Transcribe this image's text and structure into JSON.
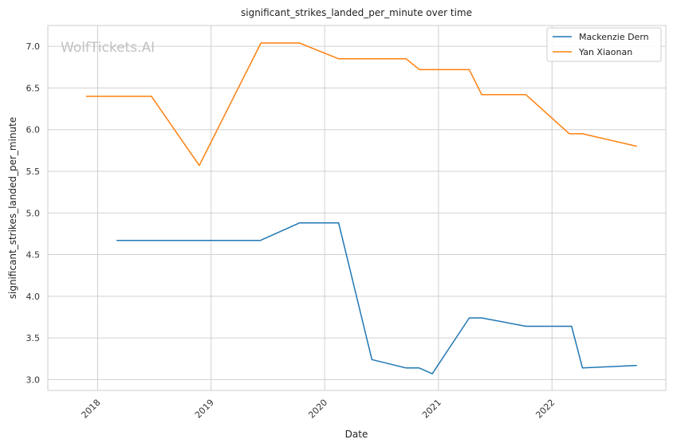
{
  "chart_data": {
    "type": "line",
    "title": "significant_strikes_landed_per_minute over time",
    "xlabel": "Date",
    "ylabel": "significant_strikes_landed_per_minute",
    "watermark": "WolfTickets.AI",
    "x_ticks": [
      "2018",
      "2019",
      "2020",
      "2021",
      "2022"
    ],
    "y_ticks": [
      "3.0",
      "3.5",
      "4.0",
      "4.5",
      "5.0",
      "5.5",
      "6.0",
      "6.5",
      "7.0"
    ],
    "xlim": [
      "2017-07-25",
      "2023-01-02"
    ],
    "ylim": [
      2.87,
      7.25
    ],
    "grid": true,
    "legend_position": "top-right",
    "series": [
      {
        "name": "Mackenzie Dern",
        "color": "#1f77b4",
        "points": [
          {
            "x": "2018-03-03",
            "y": 4.67
          },
          {
            "x": "2019-06-08",
            "y": 4.67
          },
          {
            "x": "2019-10-12",
            "y": 4.88
          },
          {
            "x": "2020-02-15",
            "y": 4.88
          },
          {
            "x": "2020-06-01",
            "y": 3.24
          },
          {
            "x": "2020-09-19",
            "y": 3.14
          },
          {
            "x": "2020-10-31",
            "y": 3.14
          },
          {
            "x": "2020-12-12",
            "y": 3.07
          },
          {
            "x": "2021-04-10",
            "y": 3.74
          },
          {
            "x": "2021-05-20",
            "y": 3.74
          },
          {
            "x": "2021-10-09",
            "y": 3.64
          },
          {
            "x": "2022-03-05",
            "y": 3.64
          },
          {
            "x": "2022-04-09",
            "y": 3.14
          },
          {
            "x": "2022-10-01",
            "y": 3.17
          }
        ]
      },
      {
        "name": "Yan Xiaonan",
        "color": "#ff7f0e",
        "points": [
          {
            "x": "2017-11-25",
            "y": 6.4
          },
          {
            "x": "2018-06-23",
            "y": 6.4
          },
          {
            "x": "2018-11-24",
            "y": 5.57
          },
          {
            "x": "2019-06-10",
            "y": 7.04
          },
          {
            "x": "2019-10-12",
            "y": 7.04
          },
          {
            "x": "2020-02-15",
            "y": 6.85
          },
          {
            "x": "2020-09-19",
            "y": 6.85
          },
          {
            "x": "2020-11-01",
            "y": 6.72
          },
          {
            "x": "2021-04-10",
            "y": 6.72
          },
          {
            "x": "2021-05-20",
            "y": 6.42
          },
          {
            "x": "2021-10-09",
            "y": 6.42
          },
          {
            "x": "2022-02-26",
            "y": 5.95
          },
          {
            "x": "2022-04-09",
            "y": 5.95
          },
          {
            "x": "2022-10-01",
            "y": 5.8
          }
        ]
      }
    ]
  }
}
